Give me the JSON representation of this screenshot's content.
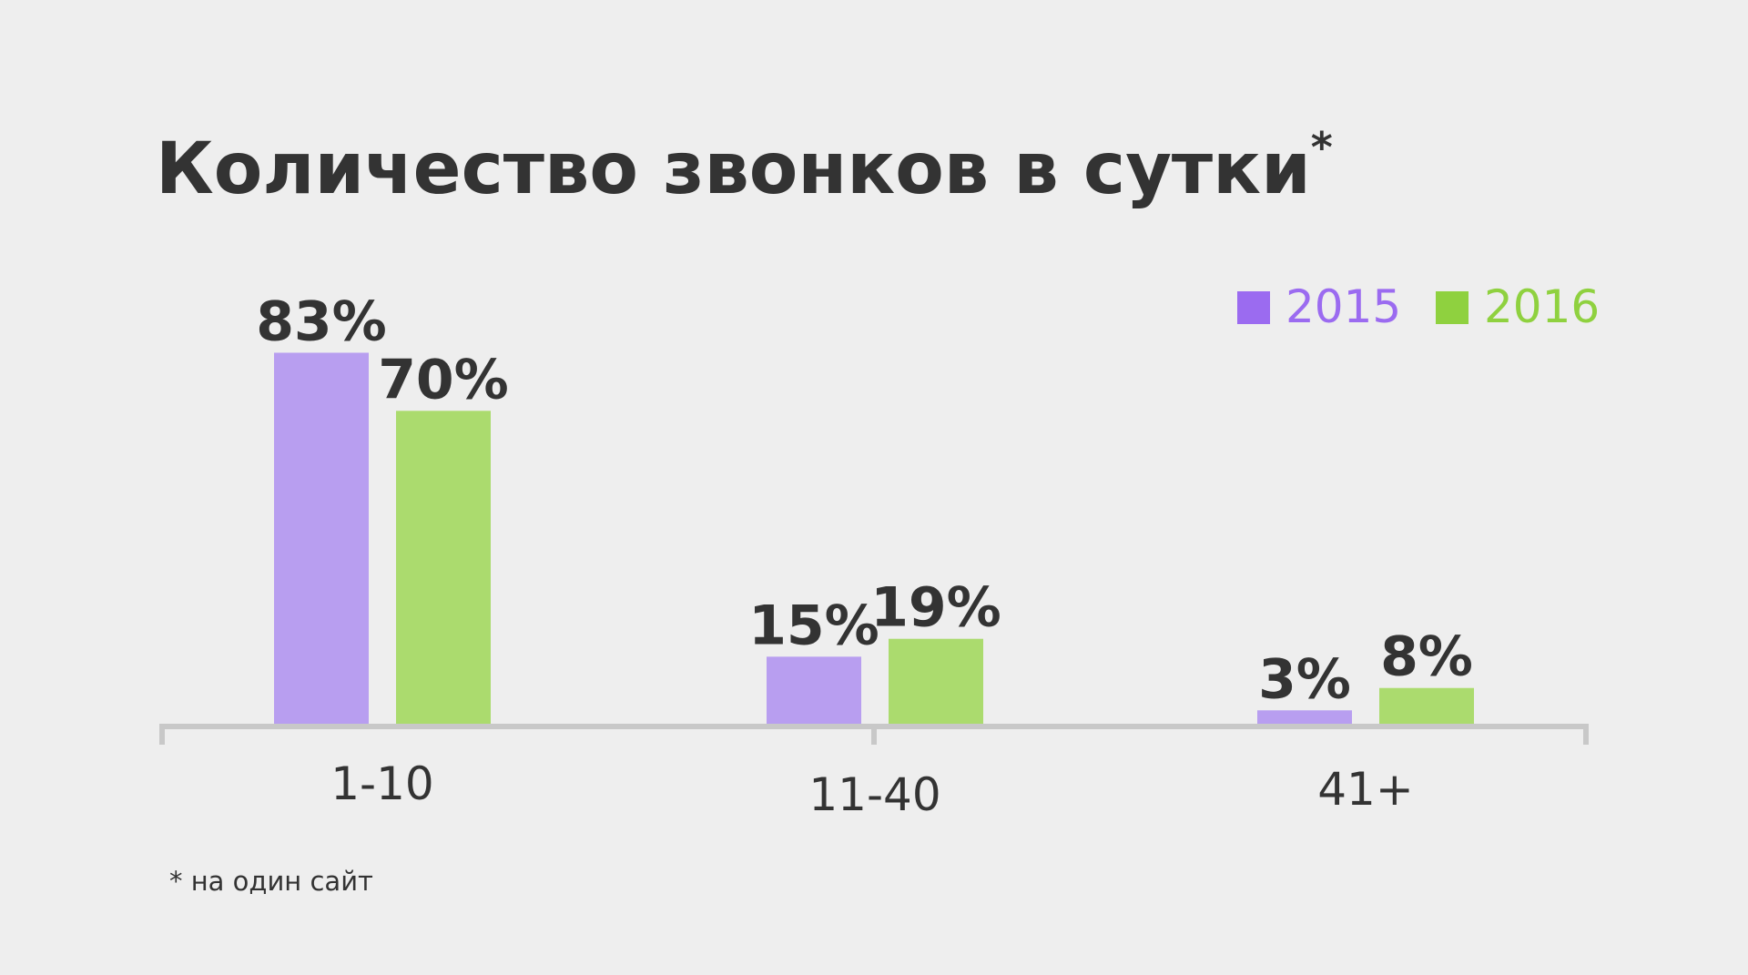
{
  "chart_data": {
    "type": "bar",
    "title": "Количество звонков в сутки",
    "title_marker": "*",
    "footnote": "* на один сайт",
    "categories": [
      "1-10",
      "11-40",
      "41+"
    ],
    "series": [
      {
        "name": "2015",
        "color": "#b89ef0",
        "legend_color": "#9b6bf0",
        "values": [
          83,
          15,
          3
        ],
        "value_labels": [
          "83%",
          "15%",
          "3%"
        ]
      },
      {
        "name": "2016",
        "color": "#abdb6e",
        "legend_color": "#8fd13f",
        "values": [
          70,
          19,
          8
        ],
        "value_labels": [
          "70%",
          "19%",
          "8%"
        ]
      }
    ],
    "legend": "top-right"
  }
}
